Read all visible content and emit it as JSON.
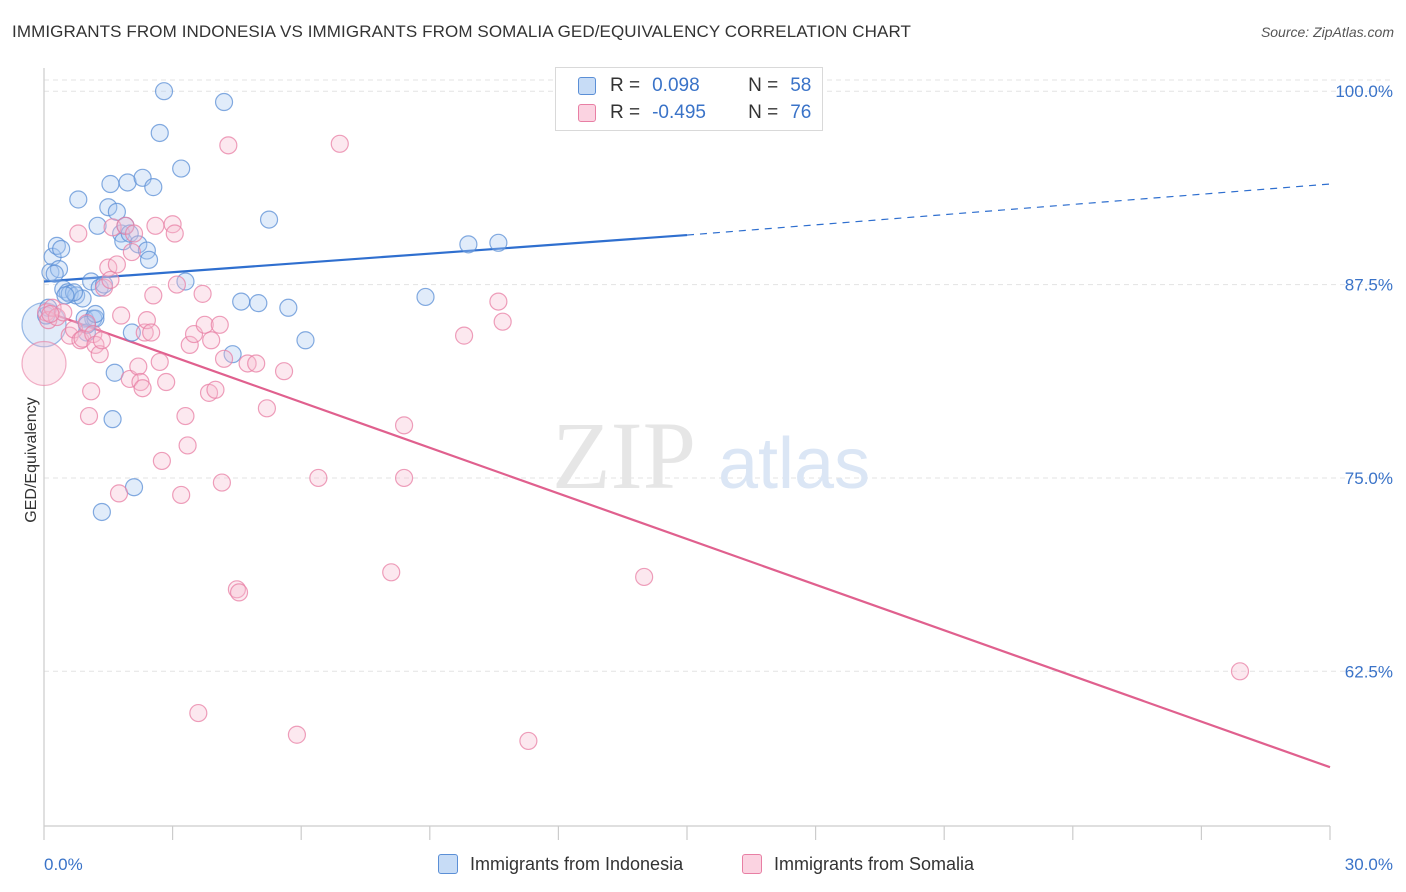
{
  "header": {
    "title": "IMMIGRANTS FROM INDONESIA VS IMMIGRANTS FROM SOMALIA GED/EQUIVALENCY CORRELATION CHART",
    "source": "Source: ZipAtlas.com"
  },
  "watermark": {
    "zip": "ZIP",
    "atlas": "atlas"
  },
  "legend": {
    "indonesia": {
      "r_label": "R =",
      "r_value": "0.098",
      "n_label": "N =",
      "n_value": "58"
    },
    "somalia": {
      "r_label": "R =",
      "r_value": "-0.495",
      "n_label": "N =",
      "n_value": "76"
    }
  },
  "colors": {
    "indonesia_fill": "#a8c8f0",
    "indonesia_stroke": "#5b8fd6",
    "indonesia_line": "#2f6fcf",
    "somalia_fill": "#f6bcd0",
    "somalia_stroke": "#e87fa4",
    "somalia_line": "#e0608e",
    "tick_label": "#3a73c8",
    "grid": "#e3e3e3"
  },
  "chart_data": {
    "type": "scatter",
    "title": "IMMIGRANTS FROM INDONESIA VS IMMIGRANTS FROM SOMALIA GED/EQUIVALENCY CORRELATION CHART",
    "xlabel": "",
    "ylabel": "GED/Equivalency",
    "xlim": [
      0,
      30
    ],
    "ylim": [
      52.5,
      101.5
    ],
    "x_ticks": [
      0,
      3,
      6,
      9,
      12,
      15,
      18,
      21,
      24,
      27,
      30
    ],
    "x_tick_labels": {
      "0": "0.0%",
      "30": "30.0%"
    },
    "y_ticks": [
      62.5,
      75.0,
      87.5,
      100.0
    ],
    "y_tick_labels": [
      "62.5%",
      "75.0%",
      "87.5%",
      "100.0%"
    ],
    "grid": true,
    "legend_position": "top-center",
    "series": [
      {
        "name": "Immigrants from Indonesia",
        "color": "#5b8fd6",
        "trend": {
          "x0": 0,
          "y0": 87.7,
          "x1": 15,
          "y1": 90.7,
          "dashed_to_x": 30,
          "dashed_to_y": 94.0
        },
        "points": [
          [
            0.05,
            85.5
          ],
          [
            0.1,
            86.0
          ],
          [
            0.15,
            88.3
          ],
          [
            0.2,
            89.3
          ],
          [
            0.3,
            90.0
          ],
          [
            0.35,
            88.5
          ],
          [
            0.4,
            89.8
          ],
          [
            0.45,
            87.2
          ],
          [
            0.55,
            87.0
          ],
          [
            0.6,
            86.9
          ],
          [
            0.75,
            86.8
          ],
          [
            0.8,
            93.0
          ],
          [
            0.9,
            86.6
          ],
          [
            0.95,
            85.3
          ],
          [
            1.0,
            84.4
          ],
          [
            1.1,
            87.7
          ],
          [
            1.15,
            85.3
          ],
          [
            1.2,
            85.3
          ],
          [
            1.25,
            91.3
          ],
          [
            1.3,
            87.3
          ],
          [
            1.4,
            87.5
          ],
          [
            1.5,
            92.5
          ],
          [
            1.55,
            94.0
          ],
          [
            1.6,
            78.8
          ],
          [
            1.65,
            81.8
          ],
          [
            1.7,
            92.2
          ],
          [
            1.8,
            90.8
          ],
          [
            1.85,
            90.3
          ],
          [
            1.9,
            91.3
          ],
          [
            1.95,
            94.1
          ],
          [
            2.0,
            90.8
          ],
          [
            2.05,
            84.4
          ],
          [
            2.1,
            74.4
          ],
          [
            2.2,
            90.1
          ],
          [
            2.3,
            94.4
          ],
          [
            2.4,
            89.7
          ],
          [
            2.45,
            89.1
          ],
          [
            2.55,
            93.8
          ],
          [
            2.7,
            97.3
          ],
          [
            2.8,
            100.0
          ],
          [
            3.2,
            95.0
          ],
          [
            3.3,
            87.7
          ],
          [
            4.2,
            99.3
          ],
          [
            4.4,
            83.0
          ],
          [
            4.6,
            86.4
          ],
          [
            5.0,
            86.3
          ],
          [
            5.25,
            91.7
          ],
          [
            5.7,
            86.0
          ],
          [
            6.1,
            83.9
          ],
          [
            8.9,
            86.7
          ],
          [
            9.9,
            90.1
          ],
          [
            10.6,
            90.2
          ],
          [
            1.35,
            72.8
          ],
          [
            1.0,
            84.9
          ],
          [
            0.7,
            87.0
          ],
          [
            0.5,
            86.8
          ],
          [
            0.25,
            88.2
          ],
          [
            1.2,
            85.6
          ]
        ],
        "big_points": [
          {
            "x": 0.0,
            "y": 84.9
          }
        ]
      },
      {
        "name": "Immigrants from Somalia",
        "color": "#e87fa4",
        "trend": {
          "x0": 0,
          "y0": 85.8,
          "x1": 30,
          "y1": 56.3
        },
        "points": [
          [
            0.05,
            85.7
          ],
          [
            0.1,
            85.2
          ],
          [
            0.2,
            86.0
          ],
          [
            0.3,
            85.4
          ],
          [
            0.45,
            85.7
          ],
          [
            0.6,
            84.2
          ],
          [
            0.7,
            84.6
          ],
          [
            0.8,
            90.8
          ],
          [
            0.85,
            83.9
          ],
          [
            0.9,
            84.0
          ],
          [
            1.0,
            85.0
          ],
          [
            1.05,
            79.0
          ],
          [
            1.1,
            80.6
          ],
          [
            1.15,
            84.3
          ],
          [
            1.2,
            83.6
          ],
          [
            1.3,
            83.0
          ],
          [
            1.35,
            83.9
          ],
          [
            1.4,
            87.3
          ],
          [
            1.5,
            88.6
          ],
          [
            1.55,
            87.8
          ],
          [
            1.6,
            91.2
          ],
          [
            1.7,
            88.8
          ],
          [
            1.75,
            74.0
          ],
          [
            1.8,
            85.5
          ],
          [
            1.9,
            91.3
          ],
          [
            2.0,
            81.4
          ],
          [
            2.05,
            89.6
          ],
          [
            2.1,
            90.8
          ],
          [
            2.2,
            82.2
          ],
          [
            2.25,
            81.2
          ],
          [
            2.3,
            80.8
          ],
          [
            2.35,
            84.4
          ],
          [
            2.4,
            85.2
          ],
          [
            2.5,
            84.4
          ],
          [
            2.55,
            86.8
          ],
          [
            2.6,
            91.3
          ],
          [
            2.7,
            82.5
          ],
          [
            2.75,
            76.1
          ],
          [
            2.85,
            81.2
          ],
          [
            3.0,
            91.4
          ],
          [
            3.05,
            90.8
          ],
          [
            3.1,
            87.5
          ],
          [
            3.2,
            73.9
          ],
          [
            3.3,
            79.0
          ],
          [
            3.35,
            77.1
          ],
          [
            3.4,
            83.6
          ],
          [
            3.5,
            84.3
          ],
          [
            3.6,
            59.8
          ],
          [
            3.7,
            86.9
          ],
          [
            3.75,
            84.9
          ],
          [
            3.85,
            80.5
          ],
          [
            3.9,
            83.9
          ],
          [
            4.0,
            80.7
          ],
          [
            4.1,
            84.9
          ],
          [
            4.15,
            74.7
          ],
          [
            4.2,
            82.7
          ],
          [
            4.3,
            96.5
          ],
          [
            4.5,
            67.8
          ],
          [
            4.55,
            67.6
          ],
          [
            4.75,
            82.4
          ],
          [
            4.95,
            82.4
          ],
          [
            5.2,
            79.5
          ],
          [
            5.6,
            81.9
          ],
          [
            5.9,
            58.4
          ],
          [
            6.4,
            75.0
          ],
          [
            6.9,
            96.6
          ],
          [
            8.1,
            68.9
          ],
          [
            8.4,
            78.4
          ],
          [
            8.4,
            75.0
          ],
          [
            9.8,
            84.2
          ],
          [
            10.6,
            86.4
          ],
          [
            10.7,
            85.1
          ],
          [
            11.3,
            58.0
          ],
          [
            14.0,
            68.6
          ],
          [
            27.9,
            62.5
          ],
          [
            0.15,
            85.6
          ]
        ],
        "big_points": [
          {
            "x": 0.0,
            "y": 82.4
          }
        ]
      }
    ]
  },
  "bottom_legend": {
    "indonesia": "Immigrants from Indonesia",
    "somalia": "Immigrants from Somalia"
  }
}
